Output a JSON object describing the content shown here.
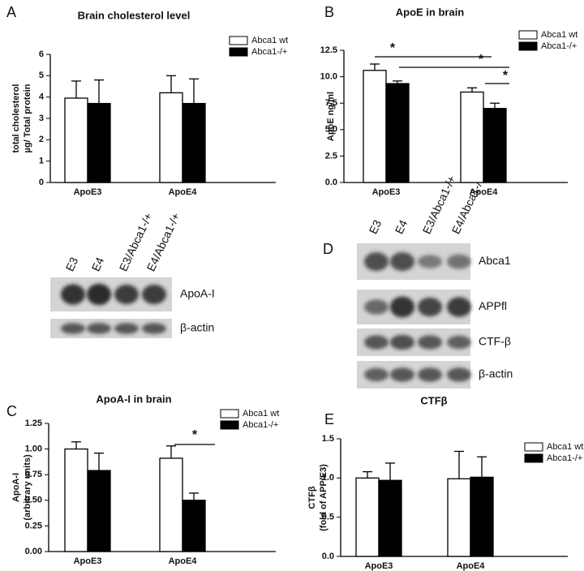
{
  "panels": [
    "A",
    "B",
    "C",
    "D",
    "E"
  ],
  "blots": [
    {
      "lanes": [
        "E3",
        "E4",
        "E3/Abca1-/+",
        "E4/Abca1-/+"
      ],
      "rows": [
        "ApoA-I",
        "β-actin"
      ]
    },
    {
      "lanes": [
        "E3",
        "E4",
        "E3/Abca1-/+",
        "E4/Abca1-/+"
      ],
      "rows": [
        "Abca1",
        "APPfl",
        "CTF-β",
        "β-actin"
      ]
    }
  ],
  "chart_data": [
    {
      "type": "bar",
      "title": "Brain cholesterol level",
      "ylabel": [
        "total cholesterol",
        "µg/ Total protein"
      ],
      "categories": [
        "ApoE3",
        "ApoE4"
      ],
      "series": [
        {
          "name": "Abca1 wt",
          "color": "#ffffff",
          "values": [
            3.95,
            4.2
          ],
          "errors": [
            0.8,
            0.8
          ]
        },
        {
          "name": "Abca1-/+",
          "color": "#000000",
          "values": [
            3.7,
            3.7
          ],
          "errors": [
            1.1,
            1.15
          ]
        }
      ],
      "ylim": [
        0,
        6
      ],
      "yticks": [
        0,
        1,
        2,
        3,
        4,
        5,
        6
      ],
      "annotations": []
    },
    {
      "type": "bar",
      "title": "ApoE in brain",
      "ylabel": [
        "ApoE ng/ml"
      ],
      "categories": [
        "ApoE3",
        "ApoE4"
      ],
      "series": [
        {
          "name": "Abca1 wt",
          "color": "#ffffff",
          "values": [
            10.6,
            8.55
          ],
          "errors": [
            0.6,
            0.4
          ]
        },
        {
          "name": "Abca1-/+",
          "color": "#000000",
          "values": [
            9.35,
            7.0
          ],
          "errors": [
            0.25,
            0.5
          ]
        }
      ],
      "ylim": [
        0,
        12.5
      ],
      "yticks": [
        {
          "value": 0,
          "label": "0.0"
        },
        2.5,
        {
          "value": 5,
          "label": "5.0"
        },
        7.5,
        {
          "value": 10,
          "label": "10.0"
        },
        12.5
      ],
      "annotations": [
        "*",
        "*",
        "*"
      ]
    },
    {
      "type": "bar",
      "title": "ApoA-I in brain",
      "ylabel": [
        "ApoA-I",
        "(arbitrary units)"
      ],
      "categories": [
        "ApoE3",
        "ApoE4"
      ],
      "series": [
        {
          "name": "Abca1 wt",
          "color": "#ffffff",
          "values": [
            1.0,
            0.91
          ],
          "errors": [
            0.07,
            0.12
          ]
        },
        {
          "name": "Abca1-/+",
          "color": "#000000",
          "values": [
            0.79,
            0.5
          ],
          "errors": [
            0.17,
            0.07
          ]
        }
      ],
      "ylim": [
        0,
        1.25
      ],
      "yticks": [
        {
          "value": 0,
          "label": "0.00"
        },
        0.25,
        {
          "value": 0.5,
          "label": "0.50"
        },
        0.75,
        {
          "value": 1,
          "label": "1.00"
        },
        1.25
      ],
      "annotations": [
        "*"
      ]
    },
    {
      "type": "bar",
      "title": "CTFβ",
      "ylabel": [
        "CTFβ",
        "(fold of APP/E3)"
      ],
      "categories": [
        "ApoE3",
        "ApoE4"
      ],
      "series": [
        {
          "name": "Abca1 wt",
          "color": "#ffffff",
          "values": [
            1.0,
            0.99
          ],
          "errors": [
            0.08,
            0.35
          ]
        },
        {
          "name": "Abca1-/+",
          "color": "#000000",
          "values": [
            0.97,
            1.01
          ],
          "errors": [
            0.22,
            0.26
          ]
        }
      ],
      "ylim": [
        0,
        1.5
      ],
      "yticks": [
        {
          "value": 0,
          "label": "0.0"
        },
        0.5,
        {
          "value": 1,
          "label": "1.0"
        },
        1.5
      ],
      "annotations": []
    }
  ]
}
